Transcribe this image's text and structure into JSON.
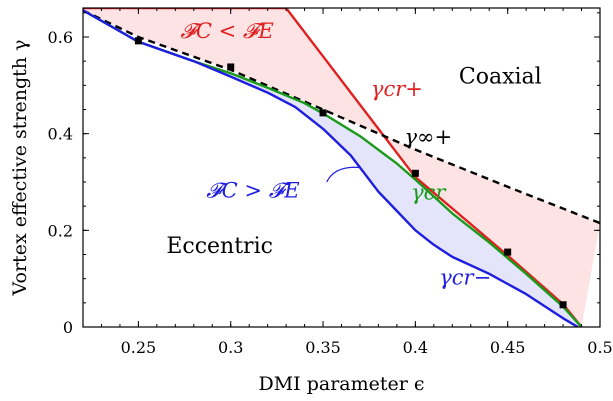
{
  "chart_data": {
    "type": "line",
    "xlabel": "DMI parameter ϵ",
    "ylabel": "Vortex effective strength γ",
    "xlim": [
      0.22,
      0.5
    ],
    "ylim": [
      0,
      0.66
    ],
    "xticks": [
      "0.25",
      "0.3",
      "0.35",
      "0.4",
      "0.45",
      "0.5"
    ],
    "xtick_values": [
      0.25,
      0.3,
      0.35,
      0.4,
      0.45,
      0.5
    ],
    "yticks": [
      "0",
      "0.2",
      "0.4",
      "0.6"
    ],
    "ytick_values": [
      0,
      0.2,
      0.4,
      0.6
    ],
    "grid": false,
    "legend": "none",
    "region_labels": [
      {
        "text": "Coaxial",
        "x": 0.446,
        "y": 0.52
      },
      {
        "text": "Eccentric",
        "x": 0.294,
        "y": 0.17
      }
    ],
    "annotations": [
      {
        "text": "𝓕C < 𝓕E",
        "x": 0.298,
        "y": 0.615,
        "color": "#e02020"
      },
      {
        "text": "γcr+",
        "x": 0.39,
        "y": 0.495,
        "color": "#e02020"
      },
      {
        "text": "γ∞+",
        "x": 0.407,
        "y": 0.395,
        "color": "#000000"
      },
      {
        "text": "γcr",
        "x": 0.407,
        "y": 0.28,
        "color": "#1a9a1a"
      },
      {
        "text": "𝓕C > 𝓕E",
        "x": 0.312,
        "y": 0.285,
        "color": "#1e1ee0"
      },
      {
        "text": "γcr−",
        "x": 0.427,
        "y": 0.105,
        "color": "#1e1ee0"
      }
    ],
    "series": [
      {
        "color": "#e02020",
        "style": "solid",
        "x": [
          0.22,
          0.28,
          0.3,
          0.32,
          0.33,
          0.35,
          0.4,
          0.45,
          0.48,
          0.49
        ],
        "y": [
          0.66,
          0.66,
          0.66,
          0.66,
          0.66,
          0.56,
          0.31,
          0.148,
          0.047,
          0.0
        ]
      },
      {
        "color": "#000000",
        "style": "dashed",
        "x": [
          0.22,
          0.25,
          0.3,
          0.35,
          0.4,
          0.45,
          0.5
        ],
        "y": [
          0.655,
          0.6,
          0.532,
          0.45,
          0.367,
          0.29,
          0.215
        ]
      },
      {
        "color": "#1a9a1a",
        "style": "solid",
        "x": [
          0.22,
          0.25,
          0.28,
          0.3,
          0.32,
          0.34,
          0.35,
          0.37,
          0.39,
          0.4,
          0.42,
          0.44,
          0.46,
          0.48,
          0.49
        ],
        "y": [
          0.655,
          0.59,
          0.55,
          0.525,
          0.495,
          0.463,
          0.442,
          0.395,
          0.338,
          0.305,
          0.235,
          0.175,
          0.11,
          0.042,
          0.0
        ]
      },
      {
        "color": "#1e1ee0",
        "style": "solid",
        "x": [
          0.22,
          0.25,
          0.28,
          0.3,
          0.32,
          0.335,
          0.35,
          0.365,
          0.38,
          0.39,
          0.4,
          0.41,
          0.42,
          0.44,
          0.46,
          0.48,
          0.488
        ],
        "y": [
          0.655,
          0.59,
          0.55,
          0.518,
          0.485,
          0.455,
          0.41,
          0.355,
          0.28,
          0.24,
          0.2,
          0.17,
          0.145,
          0.11,
          0.068,
          0.018,
          0.0
        ]
      },
      {
        "color": "#000000",
        "style": "markers",
        "x": [
          0.25,
          0.3,
          0.35,
          0.4,
          0.45,
          0.48
        ],
        "y": [
          0.592,
          0.538,
          0.443,
          0.318,
          0.155,
          0.046
        ]
      }
    ]
  }
}
